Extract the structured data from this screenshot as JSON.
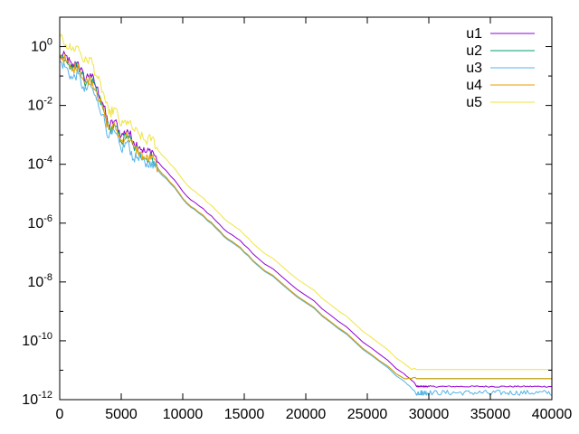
{
  "chart_data": {
    "type": "line",
    "title": "",
    "xlabel": "",
    "ylabel": "",
    "grid": false,
    "legend_position": "top-right",
    "x_scale": "linear",
    "y_scale": "log",
    "xlim": [
      0,
      40000
    ],
    "ylim": [
      1e-12,
      10
    ],
    "x_ticks": [
      0,
      5000,
      10000,
      15000,
      20000,
      25000,
      30000,
      35000,
      40000
    ],
    "x_tick_labels": [
      "0",
      "5000",
      "10000",
      "15000",
      "20000",
      "25000",
      "30000",
      "35000",
      "40000"
    ],
    "y_ticks": [
      1,
      0.01,
      0.0001,
      1e-06,
      1e-08,
      1e-10,
      1e-12
    ],
    "y_tick_labels": [
      {
        "base": "10",
        "exp": "0"
      },
      {
        "base": "10",
        "exp": "-2"
      },
      {
        "base": "10",
        "exp": "-4"
      },
      {
        "base": "10",
        "exp": "-6"
      },
      {
        "base": "10",
        "exp": "-8"
      },
      {
        "base": "10",
        "exp": "-10"
      },
      {
        "base": "10",
        "exp": "-12"
      }
    ],
    "series": [
      {
        "name": "u1",
        "color": "#9400d3",
        "x": [
          0,
          500,
          1000,
          1500,
          2000,
          2500,
          3000,
          3500,
          4000,
          4500,
          5000,
          5500,
          6000,
          6500,
          7000,
          7500,
          8000,
          9000,
          10000,
          11000,
          12000,
          13000,
          14000,
          15000,
          16000,
          18000,
          20000,
          22000,
          24000,
          26000,
          28000,
          28600,
          29000,
          30000,
          35000,
          40000
        ],
        "y": [
          0.4,
          0.5,
          0.2,
          0.3,
          0.08,
          0.12,
          0.04,
          0.012,
          0.002,
          0.003,
          0.0009,
          0.0015,
          0.0006,
          0.0004,
          0.00025,
          0.0003,
          0.00012,
          4e-05,
          1.2e-05,
          5e-06,
          2.2e-06,
          9e-07,
          4e-07,
          1.8e-07,
          7e-08,
          1.6e-08,
          3.5e-09,
          7.5e-10,
          1.6e-10,
          3.5e-11,
          7.5e-12,
          4.5e-12,
          2.8e-12,
          2.8e-12,
          2.8e-12,
          2.8e-12
        ]
      },
      {
        "name": "u2",
        "color": "#009e73",
        "x": [
          0,
          500,
          1000,
          1500,
          2000,
          2500,
          3000,
          3500,
          4000,
          4500,
          5000,
          5500,
          6000,
          6500,
          7000,
          7500,
          8000,
          9000,
          10000,
          11000,
          12000,
          13000,
          14000,
          15000,
          16000,
          18000,
          20000,
          22000,
          24000,
          26000,
          28000,
          28600,
          29000,
          30000,
          35000,
          40000
        ],
        "y": [
          0.5,
          0.35,
          0.15,
          0.25,
          0.06,
          0.08,
          0.03,
          0.008,
          0.0015,
          0.002,
          0.0006,
          0.001,
          0.0004,
          0.00025,
          0.00015,
          0.00018,
          7e-05,
          2.4e-05,
          7e-06,
          3e-06,
          1.3e-06,
          5.5e-07,
          2.4e-07,
          1.05e-07,
          4.2e-08,
          9.5e-09,
          2.1e-09,
          4.5e-10,
          9.8e-11,
          2.1e-11,
          5.2e-12,
          5.2e-12,
          5.2e-12,
          5.2e-12,
          5.2e-12,
          5.2e-12
        ]
      },
      {
        "name": "u3",
        "color": "#56b4e9",
        "x": [
          0,
          500,
          1000,
          1500,
          2000,
          2500,
          3000,
          3500,
          4000,
          4500,
          5000,
          5500,
          6000,
          6500,
          7000,
          7500,
          8000,
          9000,
          10000,
          11000,
          12000,
          13000,
          14000,
          15000,
          16000,
          18000,
          20000,
          22000,
          24000,
          26000,
          28000,
          28700,
          29000,
          30000,
          35000,
          40000
        ],
        "y": [
          0.3,
          0.2,
          0.08,
          0.12,
          0.03,
          0.05,
          0.015,
          0.005,
          0.0008,
          0.0012,
          0.0003,
          0.0006,
          0.00015,
          0.0002,
          8e-05,
          0.00012,
          6e-05,
          2.2e-05,
          6.5e-06,
          2.8e-06,
          1.2e-06,
          5e-07,
          2.2e-07,
          9.8e-08,
          3.9e-08,
          8.8e-09,
          1.95e-09,
          4.2e-10,
          9e-11,
          1.95e-11,
          4.2e-12,
          2.2e-12,
          1.4e-12,
          1.4e-12,
          1.4e-12,
          1.4e-12
        ]
      },
      {
        "name": "u4",
        "color": "#e69f00",
        "x": [
          0,
          500,
          1000,
          1500,
          2000,
          2500,
          3000,
          3500,
          4000,
          4500,
          5000,
          5500,
          6000,
          6500,
          7000,
          7500,
          8000,
          9000,
          10000,
          11000,
          12000,
          13000,
          14000,
          15000,
          16000,
          18000,
          20000,
          22000,
          24000,
          26000,
          28000,
          28600,
          29000,
          30000,
          35000,
          40000
        ],
        "y": [
          0.5,
          0.35,
          0.15,
          0.25,
          0.06,
          0.08,
          0.03,
          0.008,
          0.0015,
          0.002,
          0.0006,
          0.001,
          0.0004,
          0.00025,
          0.00015,
          0.00018,
          7e-05,
          2.4e-05,
          7e-06,
          3e-06,
          1.3e-06,
          5.5e-07,
          2.4e-07,
          1.05e-07,
          4.2e-08,
          9.5e-09,
          2.1e-09,
          4.5e-10,
          9.8e-11,
          2.1e-11,
          5.2e-12,
          5.2e-12,
          5.2e-12,
          5.2e-12,
          5.2e-12,
          5.2e-12
        ]
      },
      {
        "name": "u5",
        "color": "#f0e442",
        "x": [
          0,
          500,
          1000,
          1500,
          2000,
          2500,
          3000,
          3500,
          4000,
          4500,
          5000,
          5500,
          6000,
          6500,
          7000,
          7500,
          8000,
          9000,
          10000,
          11000,
          12000,
          13000,
          14000,
          15000,
          16000,
          18000,
          20000,
          22000,
          24000,
          26000,
          28000,
          28600,
          29000,
          30000,
          35000,
          40000
        ],
        "y": [
          2.0,
          1.2,
          0.8,
          1.0,
          0.3,
          0.4,
          0.1,
          0.03,
          0.005,
          0.008,
          0.002,
          0.003,
          0.0015,
          0.001,
          0.0006,
          0.0008,
          0.0003,
          0.0001,
          3e-05,
          1.2e-05,
          5e-06,
          2.1e-06,
          9e-07,
          4e-07,
          1.6e-07,
          3.6e-08,
          8e-09,
          1.7e-09,
          3.7e-10,
          8e-11,
          1.7e-11,
          1.05e-11,
          1.05e-11,
          1.05e-11,
          1.05e-11,
          1.05e-11
        ]
      }
    ]
  }
}
